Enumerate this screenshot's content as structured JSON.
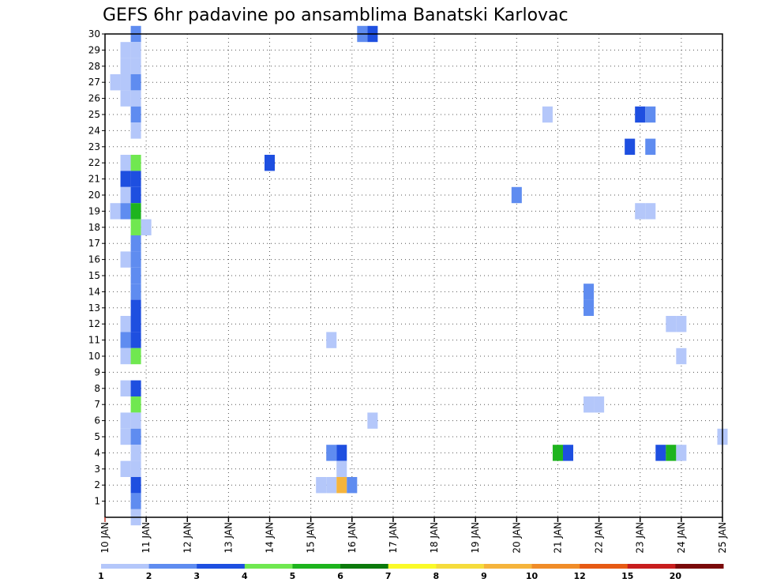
{
  "chart_data": {
    "type": "heatmap",
    "title": "GEFS 6hr padavine po ansamblima Banatski Karlovac",
    "y_ticks": [
      "1",
      "2",
      "3",
      "4",
      "5",
      "6",
      "7",
      "8",
      "9",
      "10",
      "11",
      "12",
      "13",
      "14",
      "15",
      "16",
      "17",
      "18",
      "19",
      "20",
      "21",
      "22",
      "23",
      "24",
      "25",
      "26",
      "27",
      "28",
      "29",
      "30"
    ],
    "x_ticks": [
      "10 JAN",
      "11 JAN",
      "12 JAN",
      "13 JAN",
      "14 JAN",
      "15 JAN",
      "16 JAN",
      "17 JAN",
      "18 JAN",
      "19 JAN",
      "20 JAN",
      "21 JAN",
      "22 JAN",
      "23 JAN",
      "24 JAN",
      "25 JAN"
    ],
    "xlim_days": [
      10,
      25
    ],
    "ylim": [
      0,
      30
    ],
    "grid": true,
    "legend_placement": "bottom",
    "legend": {
      "labels": [
        "1",
        "2",
        "3",
        "4",
        "5",
        "6",
        "7",
        "8",
        "9",
        "10",
        "12",
        "15",
        "20"
      ],
      "colors": [
        "#b4c7fa",
        "#5f8cf0",
        "#1e4fe0",
        "#70e850",
        "#1eb41e",
        "#0c7a0c",
        "#fafa28",
        "#f5dc3c",
        "#f5b43c",
        "#f08c28",
        "#e65a14",
        "#c81e1e",
        "#7a0a0a"
      ]
    },
    "cell_hours": 6,
    "cells": [
      {
        "member": 30,
        "day": 10.75,
        "cls": 1
      },
      {
        "member": 30,
        "day": 16.25,
        "cls": 1
      },
      {
        "member": 30,
        "day": 16.5,
        "cls": 2
      },
      {
        "member": 29,
        "day": 10.5,
        "cls": 0
      },
      {
        "member": 29,
        "day": 10.75,
        "cls": 0
      },
      {
        "member": 28,
        "day": 10.5,
        "cls": 0
      },
      {
        "member": 28,
        "day": 10.75,
        "cls": 0
      },
      {
        "member": 27,
        "day": 10.25,
        "cls": 0
      },
      {
        "member": 27,
        "day": 10.5,
        "cls": 0
      },
      {
        "member": 27,
        "day": 10.75,
        "cls": 1
      },
      {
        "member": 26,
        "day": 10.5,
        "cls": 0
      },
      {
        "member": 26,
        "day": 10.75,
        "cls": 0
      },
      {
        "member": 25,
        "day": 10.75,
        "cls": 1
      },
      {
        "member": 25,
        "day": 20.75,
        "cls": 0
      },
      {
        "member": 25,
        "day": 23.0,
        "cls": 2
      },
      {
        "member": 25,
        "day": 23.25,
        "cls": 1
      },
      {
        "member": 24,
        "day": 10.75,
        "cls": 0
      },
      {
        "member": 23,
        "day": 22.75,
        "cls": 2
      },
      {
        "member": 23,
        "day": 23.25,
        "cls": 1
      },
      {
        "member": 22,
        "day": 10.5,
        "cls": 0
      },
      {
        "member": 22,
        "day": 10.75,
        "cls": 3
      },
      {
        "member": 22,
        "day": 14.0,
        "cls": 2
      },
      {
        "member": 21,
        "day": 10.5,
        "cls": 2
      },
      {
        "member": 21,
        "day": 10.75,
        "cls": 2
      },
      {
        "member": 20,
        "day": 10.5,
        "cls": 0
      },
      {
        "member": 20,
        "day": 10.75,
        "cls": 2
      },
      {
        "member": 20,
        "day": 20.0,
        "cls": 1
      },
      {
        "member": 19,
        "day": 10.25,
        "cls": 0
      },
      {
        "member": 19,
        "day": 10.5,
        "cls": 1
      },
      {
        "member": 19,
        "day": 10.75,
        "cls": 4
      },
      {
        "member": 19,
        "day": 23.0,
        "cls": 0
      },
      {
        "member": 19,
        "day": 23.25,
        "cls": 0
      },
      {
        "member": 18,
        "day": 10.75,
        "cls": 3
      },
      {
        "member": 18,
        "day": 11.0,
        "cls": 0
      },
      {
        "member": 17,
        "day": 10.75,
        "cls": 1
      },
      {
        "member": 16,
        "day": 10.5,
        "cls": 0
      },
      {
        "member": 16,
        "day": 10.75,
        "cls": 1
      },
      {
        "member": 15,
        "day": 10.75,
        "cls": 1
      },
      {
        "member": 14,
        "day": 10.75,
        "cls": 1
      },
      {
        "member": 14,
        "day": 21.75,
        "cls": 1
      },
      {
        "member": 13,
        "day": 10.75,
        "cls": 2
      },
      {
        "member": 13,
        "day": 21.75,
        "cls": 1
      },
      {
        "member": 12,
        "day": 10.5,
        "cls": 0
      },
      {
        "member": 12,
        "day": 10.75,
        "cls": 2
      },
      {
        "member": 12,
        "day": 23.75,
        "cls": 0
      },
      {
        "member": 12,
        "day": 24.0,
        "cls": 0
      },
      {
        "member": 11,
        "day": 10.5,
        "cls": 1
      },
      {
        "member": 11,
        "day": 10.75,
        "cls": 2
      },
      {
        "member": 11,
        "day": 15.5,
        "cls": 0
      },
      {
        "member": 10,
        "day": 10.5,
        "cls": 0
      },
      {
        "member": 10,
        "day": 10.75,
        "cls": 3
      },
      {
        "member": 10,
        "day": 24.0,
        "cls": 0
      },
      {
        "member": 8,
        "day": 10.5,
        "cls": 0
      },
      {
        "member": 8,
        "day": 10.75,
        "cls": 2
      },
      {
        "member": 7,
        "day": 10.75,
        "cls": 3
      },
      {
        "member": 7,
        "day": 21.75,
        "cls": 0
      },
      {
        "member": 7,
        "day": 22.0,
        "cls": 0
      },
      {
        "member": 6,
        "day": 10.5,
        "cls": 0
      },
      {
        "member": 6,
        "day": 10.75,
        "cls": 0
      },
      {
        "member": 6,
        "day": 16.5,
        "cls": 0
      },
      {
        "member": 5,
        "day": 10.5,
        "cls": 0
      },
      {
        "member": 5,
        "day": 10.75,
        "cls": 1
      },
      {
        "member": 5,
        "day": 25.0,
        "cls": 0
      },
      {
        "member": 4,
        "day": 10.75,
        "cls": 0
      },
      {
        "member": 4,
        "day": 15.5,
        "cls": 1
      },
      {
        "member": 4,
        "day": 15.75,
        "cls": 2
      },
      {
        "member": 4,
        "day": 21.0,
        "cls": 4
      },
      {
        "member": 4,
        "day": 21.25,
        "cls": 2
      },
      {
        "member": 4,
        "day": 23.5,
        "cls": 2
      },
      {
        "member": 4,
        "day": 23.75,
        "cls": 4
      },
      {
        "member": 4,
        "day": 24.0,
        "cls": 0
      },
      {
        "member": 3,
        "day": 10.5,
        "cls": 0
      },
      {
        "member": 3,
        "day": 10.75,
        "cls": 0
      },
      {
        "member": 3,
        "day": 15.75,
        "cls": 0
      },
      {
        "member": 2,
        "day": 10.75,
        "cls": 2
      },
      {
        "member": 2,
        "day": 15.25,
        "cls": 0
      },
      {
        "member": 2,
        "day": 15.5,
        "cls": 0
      },
      {
        "member": 2,
        "day": 15.75,
        "cls": 8
      },
      {
        "member": 2,
        "day": 16.0,
        "cls": 1
      },
      {
        "member": 1,
        "day": 10.75,
        "cls": 1
      },
      {
        "member": 0,
        "day": 10.75,
        "cls": 0
      }
    ]
  }
}
